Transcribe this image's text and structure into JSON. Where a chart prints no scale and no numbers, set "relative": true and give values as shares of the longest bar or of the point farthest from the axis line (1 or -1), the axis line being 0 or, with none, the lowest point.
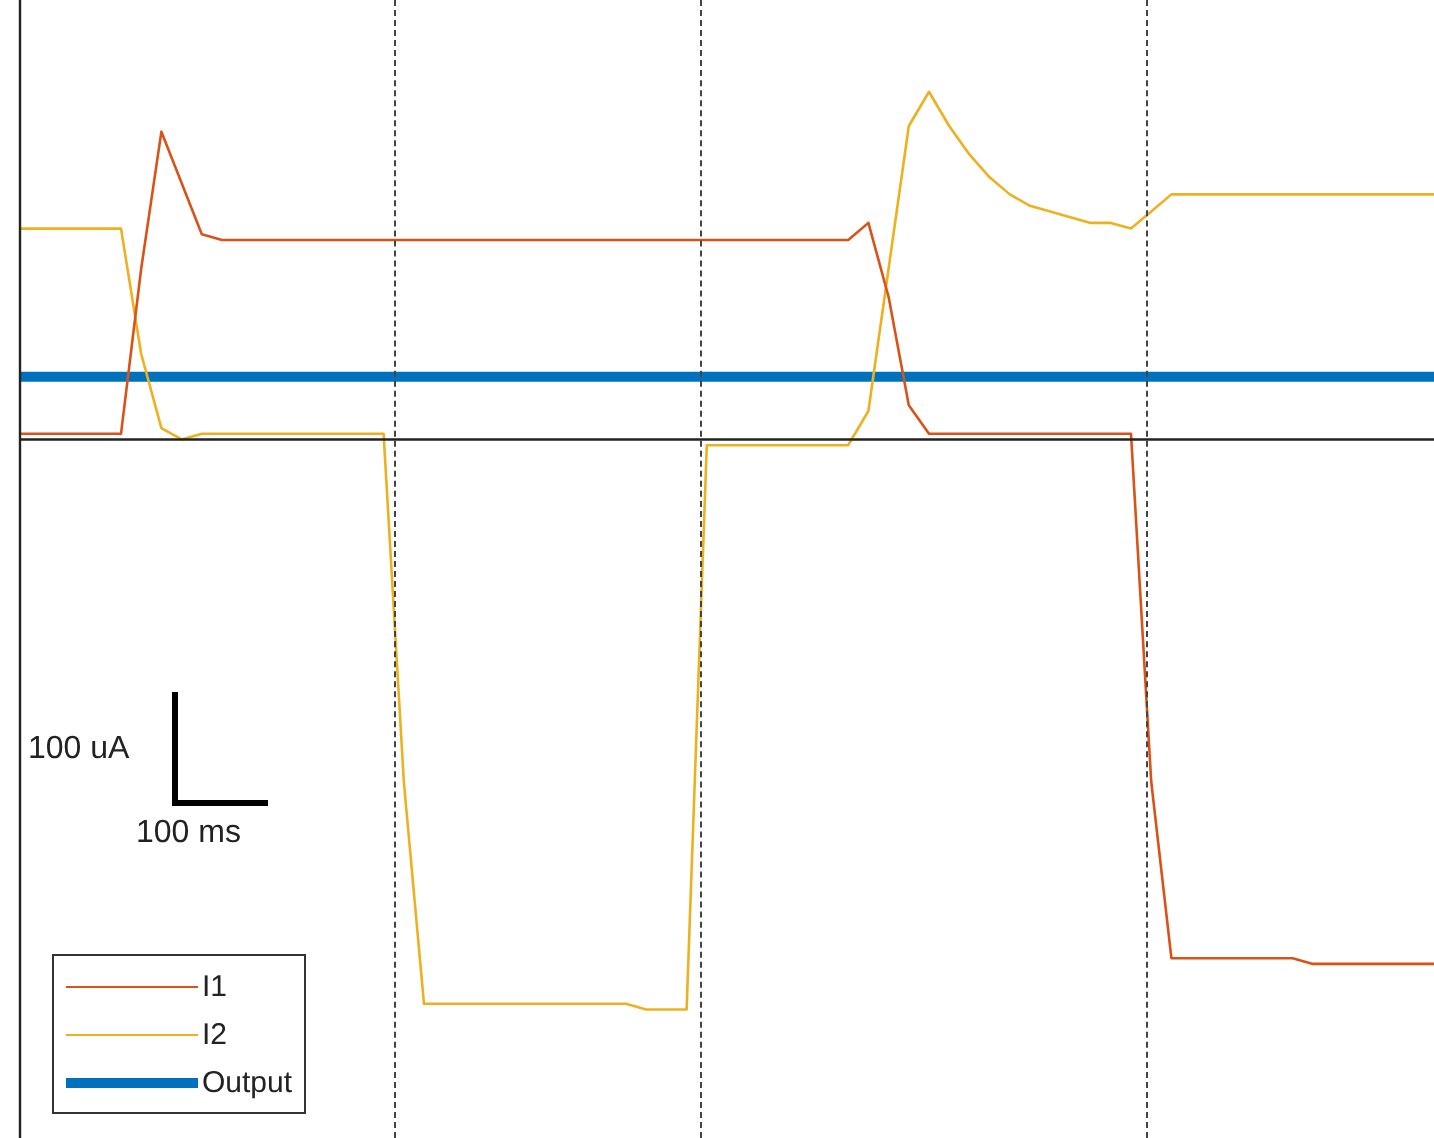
{
  "chart_data": {
    "type": "line",
    "relative": true,
    "legend": "bottom left",
    "marker": "none",
    "line_style": "solid",
    "categories": [
      null,
      null,
      null,
      null,
      null,
      null,
      null,
      null,
      null,
      null,
      null,
      null,
      null,
      null,
      null,
      null,
      null,
      null,
      null,
      null,
      null,
      null,
      null,
      null,
      null,
      null,
      null,
      null,
      null,
      null,
      null,
      null,
      null,
      null,
      null,
      null,
      null,
      null,
      null,
      null,
      null,
      null,
      null,
      null,
      null,
      null,
      null,
      null,
      null,
      null,
      null,
      null,
      null,
      null,
      null,
      null,
      null,
      null,
      null,
      null,
      null,
      null,
      null,
      null,
      null,
      null,
      null,
      null,
      null,
      null,
      null
    ],
    "series": [
      {
        "name": "I1",
        "color": "#d95319",
        "values": [
          0.01,
          0.01,
          0.01,
          0.01,
          0.01,
          0.01,
          0.3,
          0.54,
          0.45,
          0.36,
          0.35,
          0.35,
          0.35,
          0.35,
          0.35,
          0.35,
          0.35,
          0.35,
          0.35,
          0.35,
          0.35,
          0.35,
          0.35,
          0.35,
          0.35,
          0.35,
          0.35,
          0.35,
          0.35,
          0.35,
          0.35,
          0.35,
          0.35,
          0.35,
          0.35,
          0.35,
          0.35,
          0.35,
          0.35,
          0.35,
          0.35,
          0.35,
          0.38,
          0.25,
          0.06,
          0.01,
          0.01,
          0.01,
          0.01,
          0.01,
          0.01,
          0.01,
          0.01,
          0.01,
          0.01,
          0.01,
          -0.6,
          -0.91,
          -0.91,
          -0.91,
          -0.91,
          -0.91,
          -0.91,
          -0.91,
          -0.92,
          -0.92,
          -0.92,
          -0.92,
          -0.92,
          -0.92,
          -0.92
        ]
      },
      {
        "name": "I2",
        "color": "#edb120",
        "values": [
          0.37,
          0.37,
          0.37,
          0.37,
          0.37,
          0.37,
          0.15,
          0.02,
          0,
          0.01,
          0.01,
          0.01,
          0.01,
          0.01,
          0.01,
          0.01,
          0.01,
          0.01,
          0.01,
          -0.6,
          -0.99,
          -0.99,
          -0.99,
          -0.99,
          -0.99,
          -0.99,
          -0.99,
          -0.99,
          -0.99,
          -0.99,
          -0.99,
          -1,
          -1,
          -1,
          -0.01,
          -0.01,
          -0.01,
          -0.01,
          -0.01,
          -0.01,
          -0.01,
          -0.01,
          0.05,
          0.3,
          0.55,
          0.61,
          0.55,
          0.5,
          0.46,
          0.43,
          0.41,
          0.4,
          0.39,
          0.38,
          0.38,
          0.37,
          0.4,
          0.43,
          0.43,
          0.43,
          0.43,
          0.43,
          0.43,
          0.43,
          0.43,
          0.43,
          0.43,
          0.43,
          0.43,
          0.43,
          0.43
        ]
      },
      {
        "name": "Output",
        "color": "#0072bd",
        "values": [
          0.11,
          0.11,
          0.11,
          0.11,
          0.11,
          0.11,
          0.11,
          0.11,
          0.11,
          0.11,
          0.11,
          0.11,
          0.11,
          0.11,
          0.11,
          0.11,
          0.11,
          0.11,
          0.11,
          0.11,
          0.11,
          0.11,
          0.11,
          0.11,
          0.11,
          0.11,
          0.11,
          0.11,
          0.11,
          0.11,
          0.11,
          0.11,
          0.11,
          0.11,
          0.11,
          0.11,
          0.11,
          0.11,
          0.11,
          0.11,
          0.11,
          0.11,
          0.11,
          0.11,
          0.11,
          0.11,
          0.11,
          0.11,
          0.11,
          0.11,
          0.11,
          0.11,
          0.11,
          0.11,
          0.11,
          0.11,
          0.11,
          0.11,
          0.11,
          0.11,
          0.11,
          0.11,
          0.11,
          0.11,
          0.11,
          0.11,
          0.11,
          0.11,
          0.11,
          0.11,
          0.11
        ]
      }
    ],
    "annotations": [
      "100 uA",
      "100 ms"
    ]
  }
}
